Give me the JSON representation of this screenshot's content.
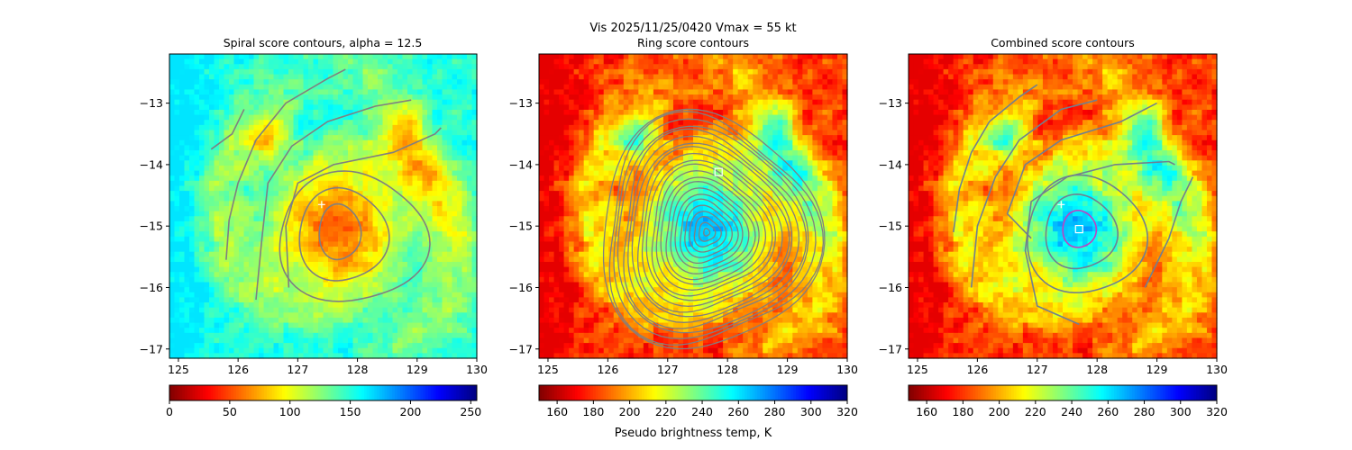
{
  "suptitle": {
    "line1": "Vis  2025/11/25/0420    Vmax = 55 kt"
  },
  "chart_data": [
    {
      "type": "heatmap",
      "title": "Spiral score contours, alpha = 12.5",
      "x_ticks": [
        "125",
        "126",
        "127",
        "128",
        "129",
        "130"
      ],
      "y_ticks": [
        "−13",
        "−14",
        "−15",
        "−16",
        "−17"
      ],
      "xlim": [
        124.85,
        130.0
      ],
      "ylim": [
        -17.15,
        -12.2
      ],
      "colormap": "jet_r",
      "colorbar": {
        "ticks": [
          "0",
          "50",
          "100",
          "150",
          "200",
          "250"
        ],
        "range": [
          0,
          255
        ],
        "reversed": true
      },
      "markers": [
        {
          "type": "plus",
          "color": "#ffffff",
          "x": 127.4,
          "y": -14.65
        }
      ],
      "contours": "spiral",
      "contour_color": "#808080",
      "field": "vis"
    },
    {
      "type": "heatmap",
      "title": "Ring score contours",
      "x_ticks": [
        "125",
        "126",
        "127",
        "128",
        "129",
        "130"
      ],
      "y_ticks": [
        "−13",
        "−14",
        "−15",
        "−16",
        "−17"
      ],
      "xlim": [
        124.85,
        130.0
      ],
      "ylim": [
        -17.15,
        -12.2
      ],
      "colormap": "jet_r",
      "colorbar": {
        "ticks": [
          "160",
          "180",
          "200",
          "220",
          "240",
          "260",
          "280",
          "300",
          "320"
        ],
        "range": [
          150,
          320
        ],
        "label": "Pseudo brightness temp, K"
      },
      "markers": [
        {
          "type": "square",
          "color": "#ffffff",
          "x": 127.85,
          "y": -14.12
        }
      ],
      "contours": "ring-dense",
      "contour_color": "#808080",
      "field": "tb"
    },
    {
      "type": "heatmap",
      "title": "Combined score contours",
      "x_ticks": [
        "125",
        "126",
        "127",
        "128",
        "129",
        "130"
      ],
      "y_ticks": [
        "−13",
        "−14",
        "−15",
        "−16",
        "−17"
      ],
      "xlim": [
        124.85,
        130.0
      ],
      "ylim": [
        -17.15,
        -12.2
      ],
      "colormap": "jet_r",
      "colorbar": {
        "ticks": [
          "160",
          "180",
          "200",
          "220",
          "240",
          "260",
          "280",
          "300",
          "320"
        ],
        "range": [
          150,
          320
        ]
      },
      "markers": [
        {
          "type": "plus",
          "color": "#ffffff",
          "x": 127.4,
          "y": -14.65
        },
        {
          "type": "square",
          "color": "#ffffff",
          "x": 127.7,
          "y": -15.05
        }
      ],
      "contours": "combined",
      "contour_color": "#708090",
      "highlight_contour_color": "#c040c0",
      "field": "tb"
    }
  ]
}
